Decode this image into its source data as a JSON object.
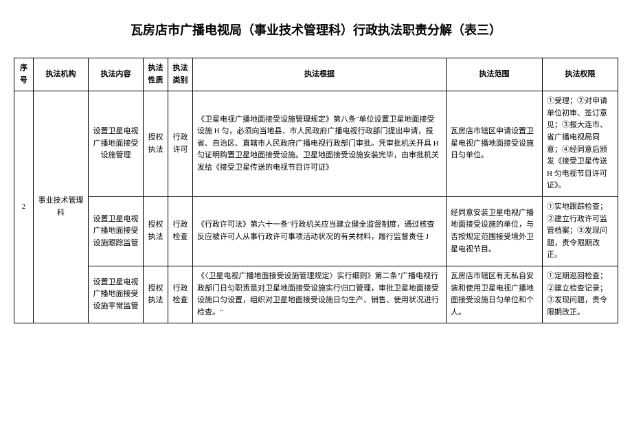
{
  "title": "瓦房店市广播电视局（事业技术管理科）行政执法职责分解（表三）",
  "headers": {
    "seq": "序号",
    "org": "执法机构",
    "content": "执法内容",
    "nature": "执法性质",
    "category": "执法类别",
    "basis": "执法根据",
    "scope": "执法范围",
    "authority": "执法权限"
  },
  "seq_value": "2",
  "org_value": "事业技术管理科",
  "rows": [
    {
      "content": "设置卫星电视广播地面接受设施管理",
      "nature": "授权执法",
      "category": "行政许可",
      "basis": "《卫星电视广播地面接受设施管理规定》第八条\"单位设置卫星地面接受设施 H 匀，必须向当地县、市人民政府广播电视行政部门提出申请，报省、自治区、直辖市人民政府广播电视行政部门审批。凭审批机关开具 H 匀证明购置卫星地面接受设施。卫星地面接受设施安装完毕，由审批机关发给《接受卫星传送的电视节目许可证》",
      "scope": "瓦房店市辖区申请设置卫星电视广播地面接受设施日匀单位。",
      "authority": "①受理；②对申请单位初审、签订意见；③报大连市、省广播电视局同意；④经同意后颁发《接受卫星传送 H 匀电视节目许可证》。"
    },
    {
      "content": "设置卫星电视广播地面接受设施跟踪监管",
      "nature": "授权执法",
      "category": "行政检查",
      "basis": "《行政许可法》第六十一条\"行政机关应当建立健全监督制度，通过核查反应被许可人从事行政许可事项活动状况的有关材料，履行监督责任 J",
      "scope": "经同意安装卫星电视广播地面接受设施的单位，与否按规定范围接受境外卫星电视节目。",
      "authority": "①实地跟踪检查；②建立行政许可监管档案；③发现问题，责令限期改正。"
    },
    {
      "content": "设置卫星电视广播地面接受设施平常监管",
      "nature": "授权执法",
      "category": "行政检查",
      "basis": "《〈卫星电视广播地面接受设施管理规定〉实行细则》第二条\"广播电视行政部门日匀职责是对卫星地面接受设施实行归口管理，审批卫星地面接受设施口匀设置，组织对卫星地面接受设施日匀生产、销售、使用状况进行检查。\"",
      "scope": "瓦房店市辖区有无私自安装和使用卫星电视广播地面接受设施日匀单位和个人。",
      "authority": "①定期巡回检查；②建立检查记录；③发现问题，责令限期改正。"
    }
  ]
}
